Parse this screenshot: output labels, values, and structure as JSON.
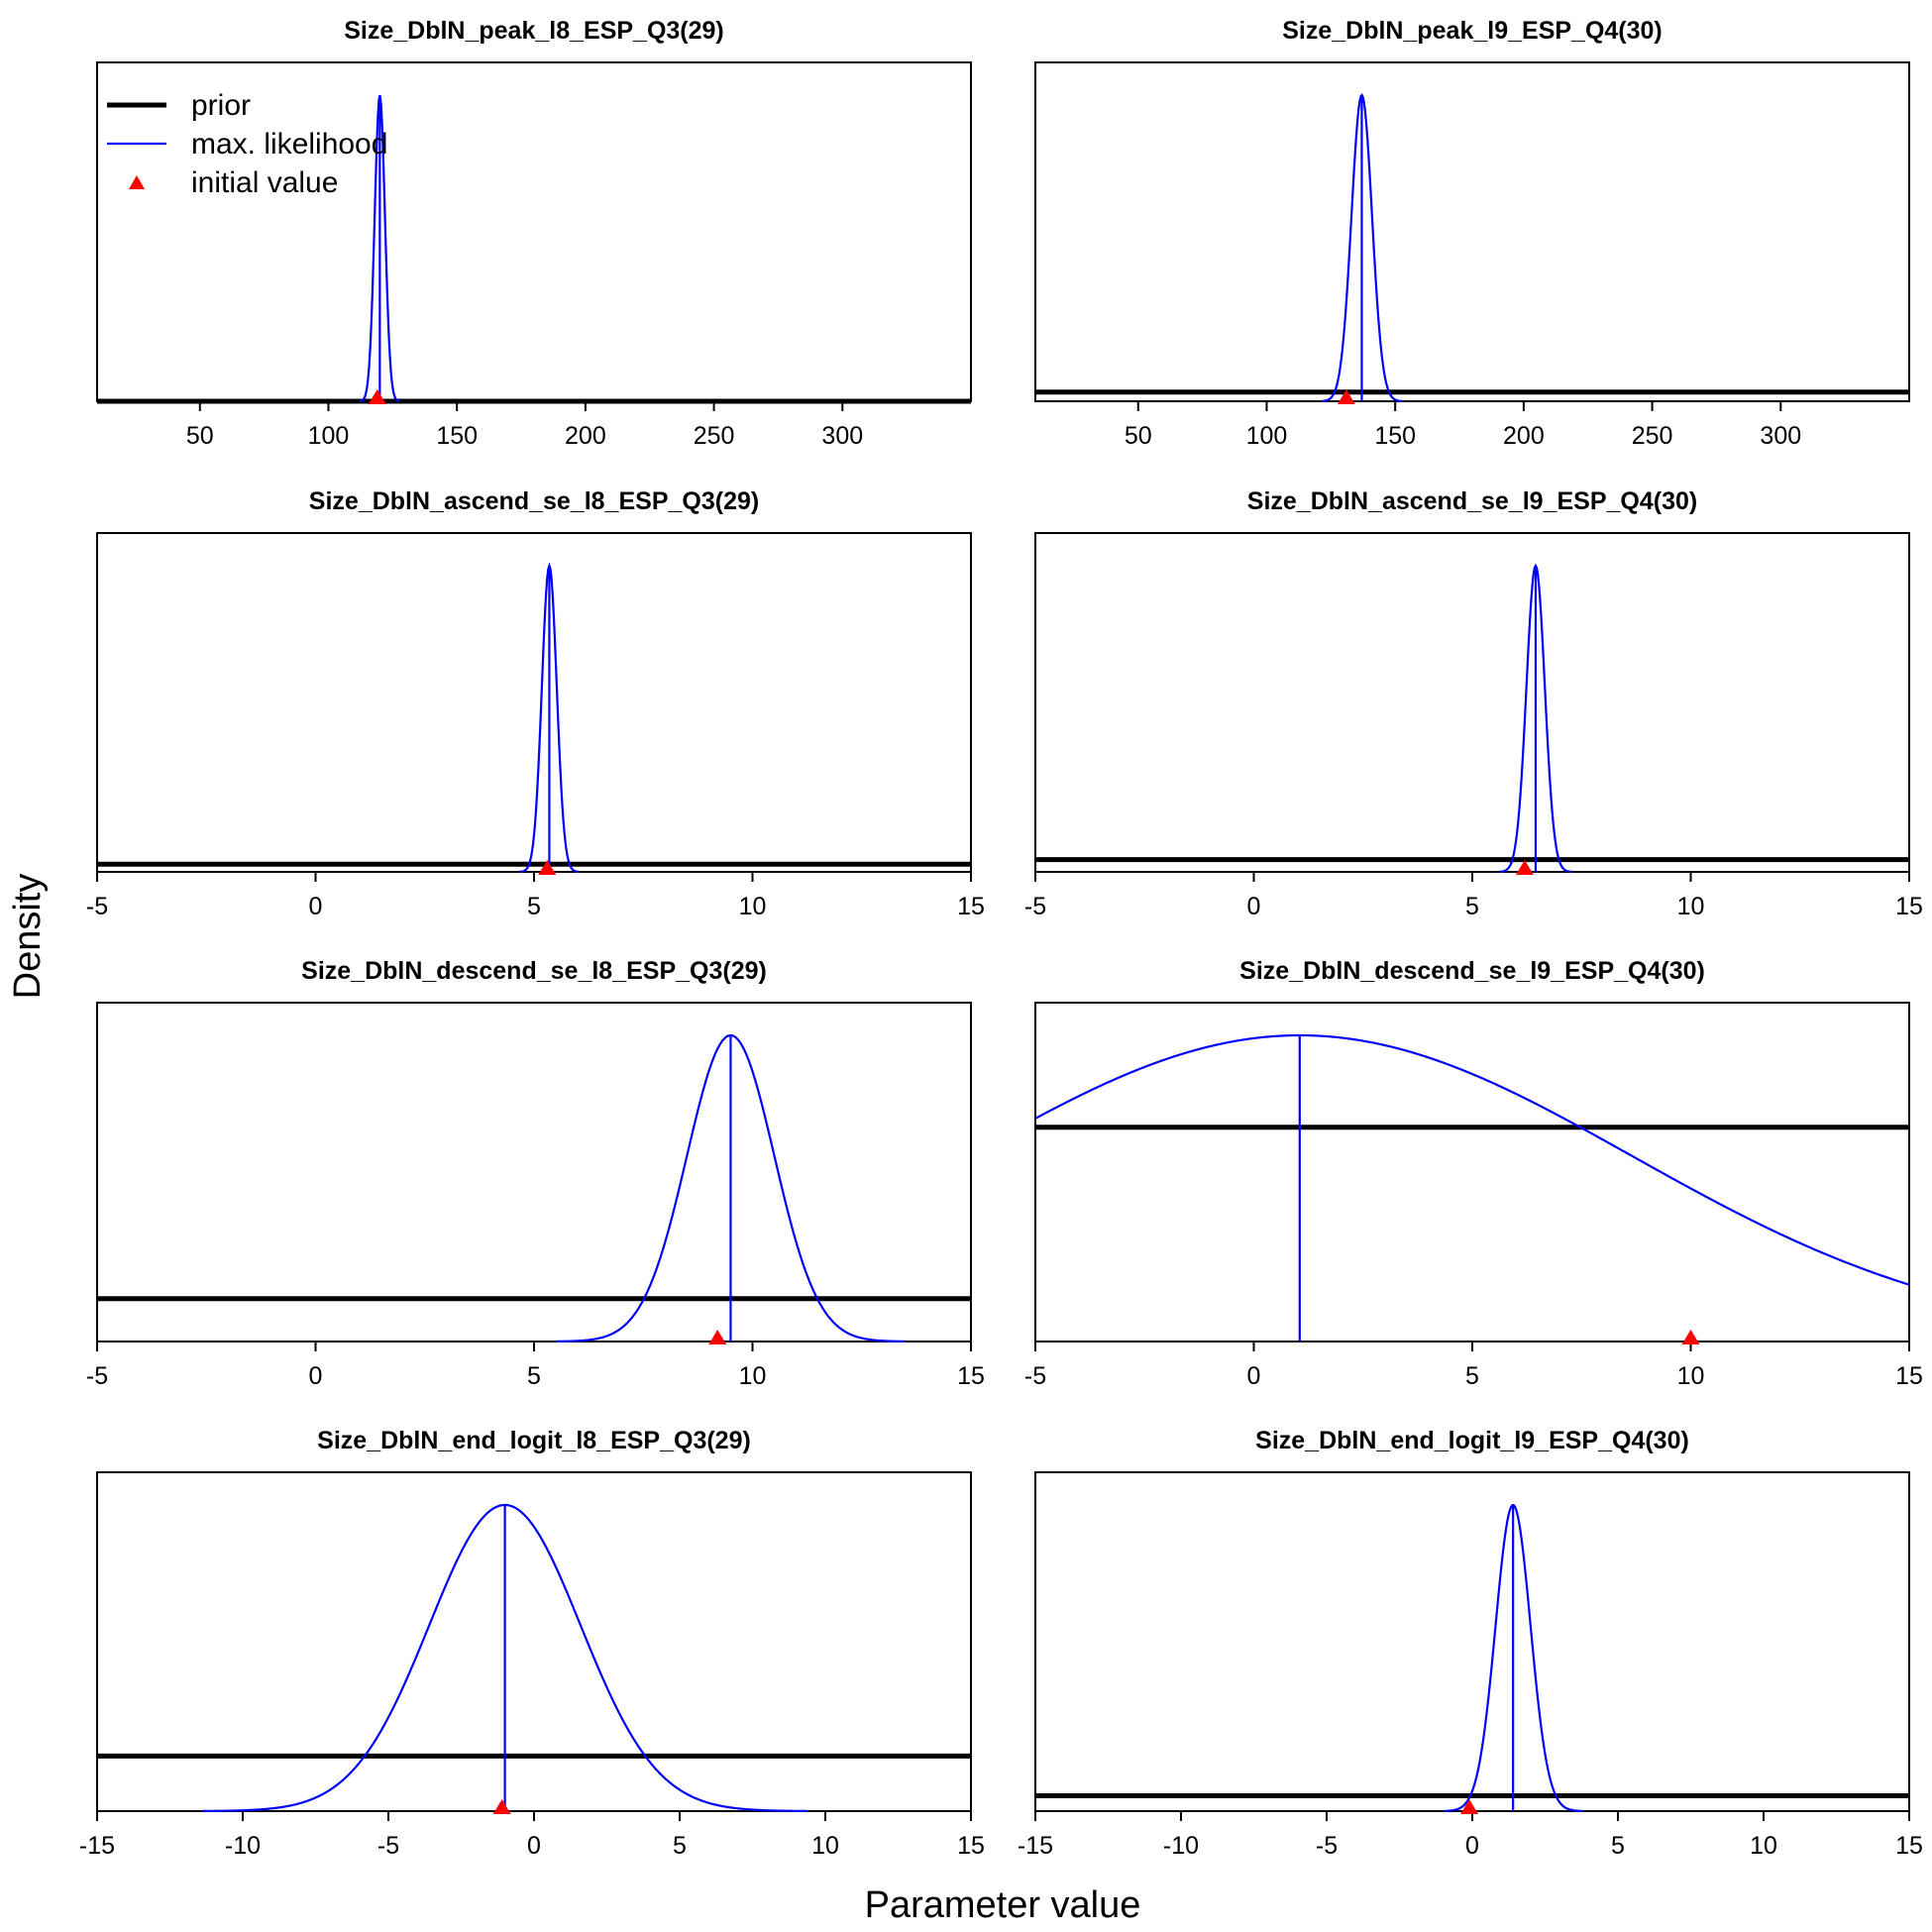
{
  "figure": {
    "xlabel": "Parameter value",
    "ylabel": "Density",
    "legend": {
      "placement": "top-left",
      "panel": 0,
      "items": [
        {
          "label": "prior",
          "kind": "line",
          "color": "#000000"
        },
        {
          "label": "max. likelihood",
          "kind": "line",
          "color": "#0000ff"
        },
        {
          "label": "initial value",
          "kind": "triangle",
          "color": "#ff0000"
        }
      ]
    },
    "colors": {
      "prior": "#000000",
      "likelihood": "#0000ff",
      "initial": "#ff0000"
    }
  },
  "chart_data": [
    {
      "type": "line",
      "title": "Size_DblN_peak_l8_ESP_Q3(29)",
      "xlim": [
        10,
        350
      ],
      "xticks": [
        50,
        100,
        150,
        200,
        250,
        300
      ],
      "likelihood": {
        "mean": 120,
        "sd": 2.0
      },
      "prior_level": 0.0,
      "initial_value": 119
    },
    {
      "type": "line",
      "title": "Size_DblN_peak_l9_ESP_Q4(30)",
      "xlim": [
        10,
        350
      ],
      "xticks": [
        50,
        100,
        150,
        200,
        250,
        300
      ],
      "likelihood": {
        "mean": 137,
        "sd": 4.0
      },
      "prior_level": 0.03,
      "initial_value": 131
    },
    {
      "type": "line",
      "title": "Size_DblN_ascend_se_l8_ESP_Q3(29)",
      "xlim": [
        -5,
        15
      ],
      "xticks": [
        -5,
        0,
        5,
        10,
        15
      ],
      "likelihood": {
        "mean": 5.35,
        "sd": 0.17
      },
      "prior_level": 0.025,
      "initial_value": 5.3
    },
    {
      "type": "line",
      "title": "Size_DblN_ascend_se_l9_ESP_Q4(30)",
      "xlim": [
        -5,
        15
      ],
      "xticks": [
        -5,
        0,
        5,
        10,
        15
      ],
      "likelihood": {
        "mean": 6.45,
        "sd": 0.21
      },
      "prior_level": 0.04,
      "initial_value": 6.2
    },
    {
      "type": "line",
      "title": "Size_DblN_descend_se_l8_ESP_Q3(29)",
      "xlim": [
        -5,
        15
      ],
      "xticks": [
        -5,
        0,
        5,
        10,
        15
      ],
      "likelihood": {
        "mean": 9.5,
        "sd": 1.0
      },
      "prior_level": 0.14,
      "initial_value": 9.2
    },
    {
      "type": "line",
      "title": "Size_DblN_descend_se_l9_ESP_Q4(30)",
      "xlim": [
        -5,
        15
      ],
      "xticks": [
        -5,
        0,
        5,
        10,
        15
      ],
      "likelihood": {
        "mean": 1.05,
        "sd": 7.6
      },
      "prior_level": 0.7,
      "initial_value": 10
    },
    {
      "type": "line",
      "title": "Size_DblN_end_logit_l8_ESP_Q3(29)",
      "xlim": [
        -15,
        15
      ],
      "xticks": [
        -15,
        -10,
        -5,
        0,
        5,
        10,
        15
      ],
      "likelihood": {
        "mean": -1.0,
        "sd": 2.6
      },
      "prior_level": 0.18,
      "initial_value": -1.1
    },
    {
      "type": "line",
      "title": "Size_DblN_end_logit_l9_ESP_Q4(30)",
      "xlim": [
        -15,
        15
      ],
      "xticks": [
        -15,
        -10,
        -5,
        0,
        5,
        10,
        15
      ],
      "likelihood": {
        "mean": 1.4,
        "sd": 0.6
      },
      "prior_level": 0.05,
      "initial_value": -0.1
    }
  ]
}
